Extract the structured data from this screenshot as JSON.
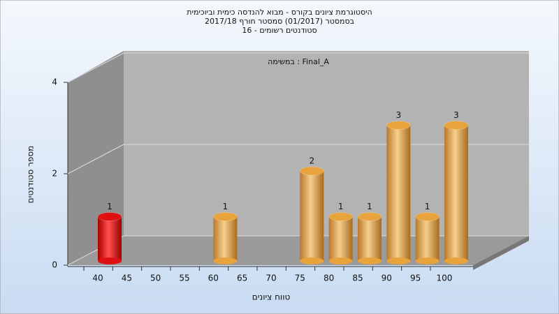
{
  "chart_data": {
    "type": "bar",
    "title": "היסטוגרמת ציונים בקורס - מבוא להנדסה כימית וביוכימית",
    "subtitle": "בסמסטר  (01/2017)  סמסטר חורף 2017/18",
    "subtitle2": "סטודנטים רשומים - 16",
    "annotation": "במשימה : Final_A",
    "x_label": "טווח ציונים",
    "y_label": "מספר סטודנטים",
    "categories": [
      "40",
      "45",
      "50",
      "55",
      "60",
      "65",
      "70",
      "75",
      "80",
      "85",
      "90",
      "95",
      "100"
    ],
    "values": [
      1,
      0,
      0,
      0,
      1,
      0,
      0,
      2,
      1,
      1,
      3,
      1,
      3
    ],
    "colors": [
      "#dd1111",
      "#e8a33c",
      "#e8a33c",
      "#e8a33c",
      "#e8a33c",
      "#e8a33c",
      "#e8a33c",
      "#e8a33c",
      "#e8a33c",
      "#e8a33c",
      "#e8a33c",
      "#e8a33c",
      "#e8a33c"
    ],
    "ylim": [
      0,
      4
    ],
    "yticks": [
      0,
      2,
      4
    ],
    "grid": true
  }
}
